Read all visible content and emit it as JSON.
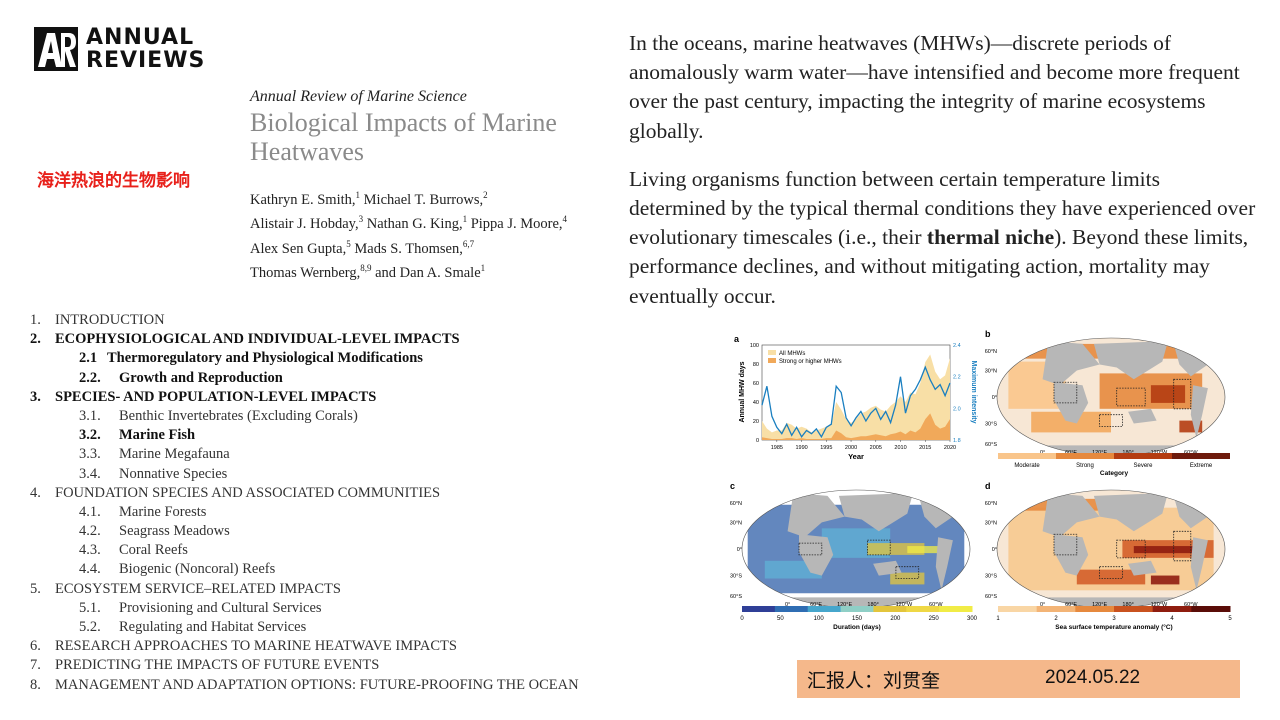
{
  "logo": {
    "line1": "ANNUAL",
    "line2": "REVIEWS"
  },
  "journal": "Annual Review of Marine Science",
  "paper_title": "Biological Impacts of Marine Heatwaves",
  "cn_title": "海洋热浪的生物影响",
  "authors": [
    {
      "name": "Kathryn E. Smith,",
      "sup": "1"
    },
    {
      "name": " Michael T. Burrows,",
      "sup": "2"
    },
    {
      "name": "Alistair J. Hobday,",
      "sup": "3"
    },
    {
      "name": " Nathan G. King,",
      "sup": "1"
    },
    {
      "name": " Pippa J. Moore,",
      "sup": "4"
    },
    {
      "name": "Alex Sen Gupta,",
      "sup": "5"
    },
    {
      "name": " Mads S. Thomsen,",
      "sup": "6,7"
    },
    {
      "name": "Thomas Wernberg,",
      "sup": "8,9"
    },
    {
      "name": " and Dan A. Smale",
      "sup": "1"
    }
  ],
  "toc": [
    {
      "num": "1.",
      "text": "INTRODUCTION",
      "level": 1,
      "bold": false
    },
    {
      "num": "2.",
      "text": "ECOPHYSIOLOGICAL AND INDIVIDUAL-LEVEL IMPACTS",
      "level": 1,
      "bold": true
    },
    {
      "num": "2.1",
      "text": "Thermoregulatory and Physiological Modifications",
      "level": 2,
      "bold": true,
      "tight": true
    },
    {
      "num": "2.2.",
      "text": "Growth and Reproduction",
      "level": 2,
      "bold": true
    },
    {
      "num": "3.",
      "text": "SPECIES- AND POPULATION-LEVEL IMPACTS",
      "level": 1,
      "bold": true
    },
    {
      "num": "3.1.",
      "text": "Benthic Invertebrates (Excluding Corals)",
      "level": 2,
      "bold": false
    },
    {
      "num": "3.2.",
      "text": "Marine Fish",
      "level": 2,
      "bold": true
    },
    {
      "num": "3.3.",
      "text": "Marine Megafauna",
      "level": 2,
      "bold": false
    },
    {
      "num": "3.4.",
      "text": "Nonnative Species",
      "level": 2,
      "bold": false
    },
    {
      "num": "4.",
      "text": "FOUNDATION SPECIES AND ASSOCIATED COMMUNITIES",
      "level": 1,
      "bold": false
    },
    {
      "num": "4.1.",
      "text": "Marine Forests",
      "level": 2,
      "bold": false
    },
    {
      "num": "4.2.",
      "text": "Seagrass Meadows",
      "level": 2,
      "bold": false
    },
    {
      "num": "4.3.",
      "text": "Coral Reefs",
      "level": 2,
      "bold": false
    },
    {
      "num": "4.4.",
      "text": "Biogenic (Noncoral) Reefs",
      "level": 2,
      "bold": false
    },
    {
      "num": "5.",
      "text": "ECOSYSTEM SERVICE–RELATED IMPACTS",
      "level": 1,
      "bold": false
    },
    {
      "num": "5.1.",
      "text": "Provisioning and Cultural Services",
      "level": 2,
      "bold": false
    },
    {
      "num": "5.2.",
      "text": "Regulating and Habitat Services",
      "level": 2,
      "bold": false
    },
    {
      "num": "6.",
      "text": "RESEARCH APPROACHES TO MARINE HEATWAVE IMPACTS",
      "level": 1,
      "bold": false
    },
    {
      "num": "7.",
      "text": "PREDICTING THE IMPACTS OF FUTURE EVENTS",
      "level": 1,
      "bold": false
    },
    {
      "num": "8.",
      "text": "MANAGEMENT AND ADAPTATION OPTIONS: FUTURE-PROOFING THE OCEAN",
      "level": 1,
      "bold": false
    }
  ],
  "paragraph1": "In the oceans, marine heatwaves (MHWs)—discrete periods of anomalously warm water—have intensified and become more frequent over the past century, impacting the integrity of marine ecosystems globally.",
  "paragraph2": {
    "before": "Living organisms function between certain temperature limits determined by the typical thermal conditions they have experienced over evolutionary timescales (i.e., their ",
    "bold": "thermal niche",
    "after": "). Beyond these limits, performance declines, and without mitigating action, mortality may eventually occur."
  },
  "figure": {
    "panel_a": {
      "letter": "a",
      "ylabel_left": "Annual MHW days",
      "ylabel_right": "Maximum intensity",
      "xlabel": "Year",
      "x_ticks": [
        "1985",
        "1990",
        "1995",
        "2000",
        "2005",
        "2010",
        "2015",
        "2020"
      ],
      "y_left_ticks": [
        "0",
        "20",
        "40",
        "60",
        "80",
        "100"
      ],
      "y_right_ticks": [
        "1.8",
        "2.0",
        "2.2",
        "2.4"
      ],
      "legend": [
        "All MHWs",
        "Strong or higher MHWs"
      ]
    },
    "panel_b": {
      "letter": "b",
      "lat_labels": [
        "60°N",
        "30°N",
        "0°",
        "30°S",
        "60°S"
      ],
      "lon_labels": [
        "0°",
        "60°E",
        "120°E",
        "180°",
        "120°W",
        "60°W"
      ],
      "categories": [
        "Moderate",
        "Strong",
        "Severe",
        "Extreme"
      ],
      "colorbar_label": "Category"
    },
    "panel_c": {
      "letter": "c",
      "lat_labels": [
        "60°N",
        "30°N",
        "0°",
        "30°S",
        "60°S"
      ],
      "lon_labels": [
        "0°",
        "60°E",
        "120°E",
        "180°",
        "120°W",
        "60°W"
      ],
      "ticks": [
        "0",
        "50",
        "100",
        "150",
        "200",
        "250",
        "300"
      ],
      "colorbar_label": "Duration (days)"
    },
    "panel_d": {
      "letter": "d",
      "lat_labels": [
        "60°N",
        "30°N",
        "0°",
        "30°S",
        "60°S"
      ],
      "lon_labels": [
        "0°",
        "60°E",
        "120°E",
        "180°",
        "120°W",
        "60°W"
      ],
      "ticks": [
        "1",
        "2",
        "3",
        "4",
        "5"
      ],
      "colorbar_label": "Sea surface temperature anomaly (°C)"
    },
    "colors": {
      "all_mhw": "#f8dfa6",
      "strong_mhw": "#f1a95a",
      "intensity_line": "#1a7fc0",
      "map_land": "#b7b7b7"
    }
  },
  "chart_data": {
    "type": "area",
    "title": "",
    "xlabel": "Year",
    "ylabel": "Annual MHW days",
    "y2label": "Maximum intensity",
    "xlim": [
      1982,
      2020
    ],
    "ylim": [
      0,
      100
    ],
    "y2lim": [
      1.8,
      2.4
    ],
    "x": [
      1982,
      1983,
      1984,
      1985,
      1986,
      1987,
      1988,
      1989,
      1990,
      1991,
      1992,
      1993,
      1994,
      1995,
      1996,
      1997,
      1998,
      1999,
      2000,
      2001,
      2002,
      2003,
      2004,
      2005,
      2006,
      2007,
      2008,
      2009,
      2010,
      2011,
      2012,
      2013,
      2014,
      2015,
      2016,
      2017,
      2018,
      2019,
      2020
    ],
    "series": [
      {
        "name": "All MHWs",
        "axis": "left",
        "values": [
          20,
          12,
          8,
          10,
          10,
          18,
          16,
          12,
          14,
          12,
          8,
          10,
          12,
          14,
          16,
          40,
          32,
          22,
          18,
          22,
          28,
          30,
          34,
          36,
          32,
          30,
          36,
          40,
          46,
          40,
          50,
          48,
          60,
          82,
          90,
          72,
          64,
          68,
          86
        ]
      },
      {
        "name": "Strong or higher MHWs",
        "axis": "left",
        "values": [
          3,
          2,
          1,
          1,
          1,
          2,
          2,
          1,
          2,
          1,
          1,
          1,
          1,
          2,
          2,
          10,
          7,
          3,
          2,
          3,
          4,
          4,
          5,
          6,
          5,
          4,
          6,
          7,
          9,
          6,
          10,
          8,
          12,
          22,
          28,
          16,
          12,
          14,
          22
        ]
      },
      {
        "name": "Maximum intensity",
        "axis": "right",
        "values": [
          2.02,
          2.14,
          1.95,
          1.88,
          1.84,
          1.9,
          1.83,
          1.88,
          1.82,
          1.86,
          1.84,
          1.87,
          1.82,
          1.88,
          1.9,
          2.14,
          2.1,
          1.94,
          1.89,
          1.94,
          1.98,
          1.92,
          1.97,
          2.0,
          1.93,
          1.98,
          1.91,
          2.02,
          2.2,
          1.97,
          2.08,
          2.12,
          2.18,
          2.26,
          2.18,
          2.12,
          2.15,
          2.08,
          2.16
        ]
      }
    ]
  },
  "reporter": {
    "name": "汇报人：刘贯奎",
    "date": "2024.05.22"
  }
}
